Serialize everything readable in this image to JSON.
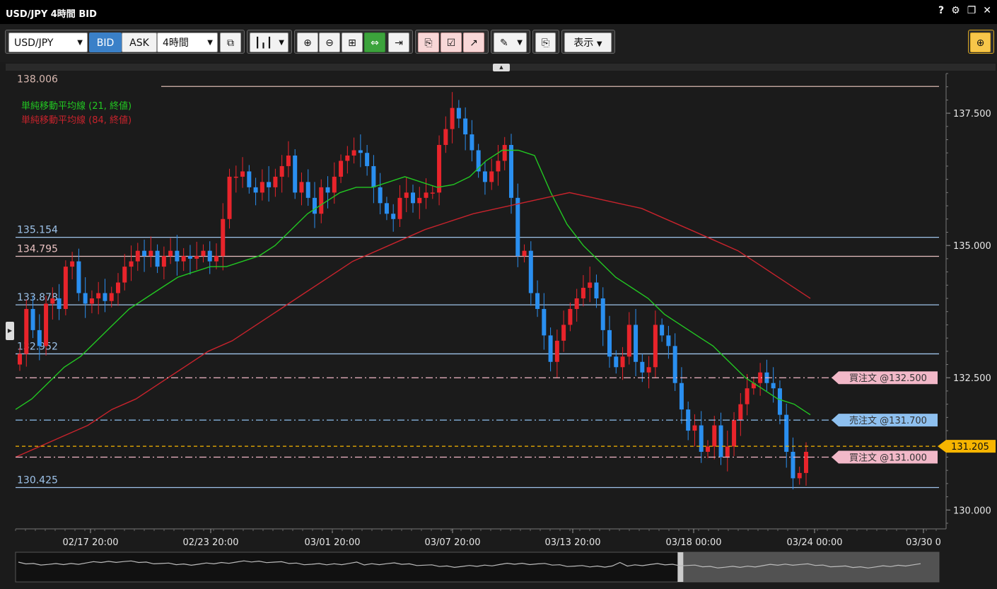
{
  "window": {
    "title": "USD/JPY 4時間 BID"
  },
  "title_icons": {
    "help": "?",
    "settings": "⚙",
    "restore": "❐",
    "close": "✕"
  },
  "toolbar": {
    "symbol": "USD/JPY",
    "bid_label": "BID",
    "ask_label": "ASK",
    "timeframe": "4時間",
    "draw_label": "✎",
    "display_label": "表示"
  },
  "colors": {
    "up": "#e8242b",
    "down": "#2a8ff0",
    "sma21": "#22c722",
    "sma84": "#c8232c",
    "current": "#f7b500",
    "bg": "#1b1b1b"
  },
  "chart_data": {
    "type": "candlestick",
    "ylim": [
      129.75,
      138.25
    ],
    "yticks": [
      130.0,
      132.5,
      135.0,
      137.5
    ],
    "ytick_labels": [
      "130.000",
      "132.500",
      "135.000",
      "137.500"
    ],
    "xtick_labels": [
      "02/17 20:00",
      "02/23 20:00",
      "03/01 20:00",
      "03/07 20:00",
      "03/13 20:00",
      "03/18 00:00",
      "03/24 00:00",
      "03/30 0"
    ],
    "legend": [
      {
        "name": "単純移動平均線 (21, 終値)",
        "color": "#22c722"
      },
      {
        "name": "単純移動平均線 (84, 終値)",
        "color": "#c8232c"
      }
    ],
    "hlines": [
      {
        "value": 138.006,
        "label": "138.006",
        "color": "#d8b8b0",
        "style": "solid"
      },
      {
        "value": 135.154,
        "label": "135.154",
        "color": "#9ec3ea",
        "style": "solid"
      },
      {
        "value": 134.795,
        "label": "134.795",
        "color": "#e8c0c0",
        "style": "solid"
      },
      {
        "value": 133.878,
        "label": "133.878",
        "color": "#9ec3ea",
        "style": "solid"
      },
      {
        "value": 132.952,
        "label": "132.952",
        "color": "#9ec3ea",
        "style": "solid"
      },
      {
        "value": 130.425,
        "label": "130.425",
        "color": "#9ec3ea",
        "style": "solid"
      }
    ],
    "orders": [
      {
        "value": 132.5,
        "label": "買注文 @132.500",
        "kind": "buy"
      },
      {
        "value": 131.7,
        "label": "売注文 @131.700",
        "kind": "sell"
      },
      {
        "value": 131.0,
        "label": "買注文 @131.000",
        "kind": "buy"
      }
    ],
    "current_price": {
      "value": 131.205,
      "label": "131.205"
    },
    "candles_close": [
      132.95,
      133.8,
      133.4,
      133.1,
      133.9,
      134.0,
      133.8,
      134.6,
      134.7,
      134.1,
      133.9,
      134.0,
      134.1,
      133.95,
      134.1,
      134.3,
      134.6,
      134.7,
      134.9,
      134.8,
      134.9,
      134.6,
      134.8,
      134.9,
      134.7,
      134.8,
      134.75,
      134.8,
      134.9,
      134.7,
      134.8,
      135.5,
      136.3,
      136.3,
      136.4,
      136.1,
      136.0,
      136.2,
      136.1,
      136.3,
      136.5,
      136.7,
      136.0,
      136.2,
      135.9,
      135.6,
      136.1,
      136.0,
      136.3,
      136.6,
      136.7,
      136.8,
      136.75,
      136.5,
      136.1,
      135.8,
      135.6,
      135.5,
      135.9,
      136.0,
      135.8,
      135.9,
      136.0,
      136.0,
      136.9,
      137.2,
      137.6,
      137.4,
      137.1,
      136.8,
      136.4,
      136.2,
      136.4,
      136.6,
      136.9,
      135.9,
      134.8,
      134.9,
      134.1,
      133.8,
      133.3,
      132.8,
      133.2,
      133.5,
      133.8,
      134.0,
      134.2,
      134.3,
      134.0,
      133.4,
      132.9,
      132.7,
      132.9,
      133.5,
      132.8,
      132.6,
      132.7,
      133.5,
      133.3,
      133.1,
      132.4,
      131.9,
      131.5,
      131.6,
      131.1,
      131.2,
      131.6,
      131.0,
      131.2,
      131.7,
      132.0,
      132.3,
      132.4,
      132.6,
      132.4,
      132.3,
      131.8,
      131.1,
      130.6,
      130.7,
      131.1
    ],
    "sma21_approx": [
      131.9,
      132.1,
      132.4,
      132.7,
      132.9,
      133.2,
      133.5,
      133.8,
      134.0,
      134.2,
      134.4,
      134.5,
      134.6,
      134.6,
      134.7,
      134.8,
      135.0,
      135.3,
      135.6,
      135.8,
      136.0,
      136.1,
      136.1,
      136.2,
      136.3,
      136.2,
      136.1,
      136.15,
      136.3,
      136.6,
      136.8,
      136.8,
      136.7,
      136.0,
      135.4,
      135.0,
      134.7,
      134.4,
      134.2,
      134.0,
      133.7,
      133.5,
      133.3,
      133.1,
      132.8,
      132.5,
      132.3,
      132.1,
      132.0,
      131.8
    ],
    "sma84_approx": [
      131.0,
      131.2,
      131.4,
      131.6,
      131.9,
      132.1,
      132.4,
      132.7,
      133.0,
      133.2,
      133.5,
      133.8,
      134.1,
      134.4,
      134.7,
      134.9,
      135.1,
      135.3,
      135.45,
      135.6,
      135.7,
      135.8,
      135.9,
      136.0,
      135.9,
      135.8,
      135.7,
      135.5,
      135.3,
      135.1,
      134.9,
      134.6,
      134.3,
      134.0
    ],
    "navigator": {
      "window_start_fraction": 0.72,
      "window_end_fraction": 1.0
    }
  }
}
